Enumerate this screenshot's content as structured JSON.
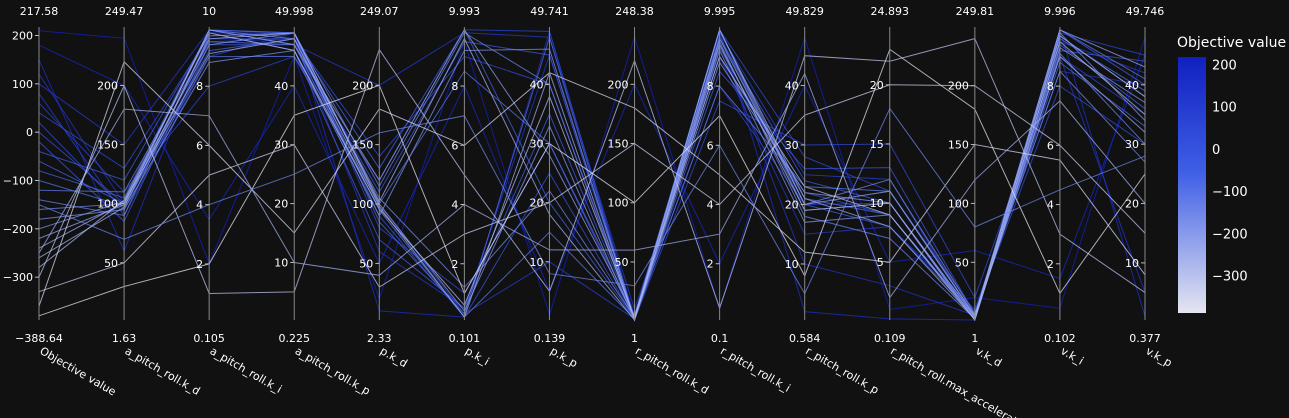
{
  "chart_data": {
    "type": "parallel_coordinates",
    "title": "",
    "colorbar": {
      "title": "Objective value",
      "range": [
        -388.64,
        217.58
      ],
      "ticks": [
        200,
        100,
        0,
        -100,
        -200,
        -300
      ],
      "colorscale": [
        "#e5e5f0",
        "#3f5fe6",
        "#1020c0"
      ]
    },
    "dimensions": [
      {
        "label": "Objective value",
        "min": -388.64,
        "max": 217.58,
        "min_label": "−388.64",
        "max_label": "217.58",
        "ticks": [
          200,
          100,
          0,
          -100,
          -200,
          -300
        ],
        "tick_labels": [
          "200",
          "100",
          "0",
          "−100",
          "−200",
          "−300"
        ]
      },
      {
        "label": "a_pitch_roll.k_d",
        "min": 1.63,
        "max": 249.47,
        "min_label": "1.63",
        "max_label": "249.47",
        "ticks": [
          200,
          150,
          100,
          50
        ],
        "tick_labels": [
          "200",
          "150",
          "100",
          "50"
        ]
      },
      {
        "label": "a_pitch_roll.k_i",
        "min": 0.105,
        "max": 10,
        "min_label": "0.105",
        "max_label": "10",
        "ticks": [
          8,
          6,
          4,
          2
        ],
        "tick_labels": [
          "8",
          "6",
          "4",
          "2"
        ]
      },
      {
        "label": "a_pitch_roll.k_p",
        "min": 0.225,
        "max": 49.998,
        "min_label": "0.225",
        "max_label": "49.998",
        "ticks": [
          40,
          30,
          20,
          10
        ],
        "tick_labels": [
          "40",
          "30",
          "20",
          "10"
        ]
      },
      {
        "label": "p.k_d",
        "min": 2.33,
        "max": 249.07,
        "min_label": "2.33",
        "max_label": "249.07",
        "ticks": [
          200,
          150,
          100,
          50
        ],
        "tick_labels": [
          "200",
          "150",
          "100",
          "50"
        ]
      },
      {
        "label": "p.k_i",
        "min": 0.101,
        "max": 9.993,
        "min_label": "0.101",
        "max_label": "9.993",
        "ticks": [
          8,
          6,
          4,
          2
        ],
        "tick_labels": [
          "8",
          "6",
          "4",
          "2"
        ]
      },
      {
        "label": "p.k_p",
        "min": 0.139,
        "max": 49.741,
        "min_label": "0.139",
        "max_label": "49.741",
        "ticks": [
          40,
          30,
          20,
          10
        ],
        "tick_labels": [
          "40",
          "30",
          "20",
          "10"
        ]
      },
      {
        "label": "r_pitch_roll.k_d",
        "min": 1,
        "max": 248.38,
        "min_label": "1",
        "max_label": "248.38",
        "ticks": [
          200,
          150,
          100,
          50
        ],
        "tick_labels": [
          "200",
          "150",
          "100",
          "50"
        ]
      },
      {
        "label": "r_pitch_roll.k_i",
        "min": 0.1,
        "max": 9.995,
        "min_label": "0.1",
        "max_label": "9.995",
        "ticks": [
          8,
          6,
          4,
          2
        ],
        "tick_labels": [
          "8",
          "6",
          "4",
          "2"
        ]
      },
      {
        "label": "r_pitch_roll.k_p",
        "min": 0.584,
        "max": 49.829,
        "min_label": "0.584",
        "max_label": "49.829",
        "ticks": [
          40,
          30,
          20,
          10
        ],
        "tick_labels": [
          "40",
          "30",
          "20",
          "10"
        ]
      },
      {
        "label": "r_pitch_roll.max_acceleration",
        "min": 0.109,
        "max": 24.893,
        "min_label": "0.109",
        "max_label": "24.893",
        "ticks": [
          20,
          15,
          10,
          5
        ],
        "tick_labels": [
          "20",
          "15",
          "10",
          "5"
        ]
      },
      {
        "label": "v.k_d",
        "min": 1,
        "max": 249.81,
        "min_label": "1",
        "max_label": "249.81",
        "ticks": [
          200,
          150,
          100,
          50
        ],
        "tick_labels": [
          "200",
          "150",
          "100",
          "50"
        ]
      },
      {
        "label": "v.k_i",
        "min": 0.102,
        "max": 9.996,
        "min_label": "0.102",
        "max_label": "9.996",
        "ticks": [
          8,
          6,
          4,
          2
        ],
        "tick_labels": [
          "8",
          "6",
          "4",
          "2"
        ]
      },
      {
        "label": "v.k_p",
        "min": 0.377,
        "max": 49.746,
        "min_label": "0.377",
        "max_label": "49.746",
        "ticks": [
          40,
          30,
          20,
          10
        ],
        "tick_labels": [
          "40",
          "30",
          "20",
          "10"
        ]
      }
    ],
    "lines": [
      [
        210,
        240,
        2.0,
        45,
        20,
        9.5,
        1,
        240,
        0.5,
        48,
        1,
        20,
        0.5,
        48
      ],
      [
        180,
        200,
        3.5,
        40,
        50,
        8.0,
        5,
        200,
        2.0,
        40,
        5,
        60,
        1.5,
        45
      ],
      [
        150,
        60,
        9.8,
        49,
        10,
        0.2,
        49,
        1,
        9.9,
        2,
        0.2,
        1,
        9.9,
        1
      ],
      [
        120,
        100,
        9.5,
        48,
        60,
        0.5,
        45,
        5,
        9.5,
        10,
        3,
        5,
        9.0,
        5
      ],
      [
        100,
        150,
        9.9,
        47,
        200,
        9.8,
        48,
        10,
        9.0,
        15,
        8,
        10,
        8.5,
        40
      ],
      [
        80,
        90,
        9.0,
        49,
        100,
        0.3,
        10,
        2,
        8.0,
        20,
        10,
        3,
        9.5,
        42
      ],
      [
        60,
        110,
        8.0,
        45,
        120,
        9.9,
        49,
        3,
        9.8,
        25,
        12,
        2,
        9.8,
        45
      ],
      [
        40,
        130,
        9.7,
        49,
        80,
        1.0,
        30,
        1,
        7.5,
        30,
        15,
        20,
        9.0,
        35
      ],
      [
        20,
        95,
        9.6,
        48,
        140,
        9.0,
        40,
        4,
        9.9,
        28,
        11,
        8,
        8.0,
        30
      ],
      [
        0,
        100,
        9.9,
        49,
        90,
        0.2,
        25,
        2,
        9.0,
        22,
        9,
        4,
        9.7,
        38
      ],
      [
        -20,
        85,
        9.4,
        47,
        110,
        9.5,
        45,
        1,
        8.5,
        26,
        13,
        6,
        9.2,
        44
      ],
      [
        -40,
        120,
        9.8,
        46,
        70,
        0.5,
        35,
        3,
        9.6,
        24,
        10,
        2,
        9.9,
        40
      ],
      [
        -60,
        100,
        9.2,
        48,
        130,
        9.9,
        20,
        2,
        9.7,
        20,
        8,
        5,
        9.4,
        36
      ],
      [
        -80,
        105,
        9.9,
        49,
        85,
        0.3,
        48,
        1,
        9.3,
        21,
        9,
        3,
        8.8,
        33
      ],
      [
        -100,
        98,
        9.0,
        45,
        100,
        8.5,
        30,
        5,
        9.9,
        19,
        10,
        1,
        9.6,
        39
      ],
      [
        -120,
        110,
        9.5,
        47,
        95,
        0.2,
        15,
        2,
        8.0,
        23,
        11,
        4,
        9.9,
        41
      ],
      [
        -140,
        90,
        9.7,
        49,
        115,
        9.8,
        40,
        1,
        9.5,
        18,
        7,
        2,
        9.1,
        30
      ],
      [
        -160,
        100,
        9.9,
        48,
        105,
        1.2,
        22,
        3,
        9.9,
        20,
        12,
        6,
        8.5,
        27
      ],
      [
        -180,
        95,
        8.8,
        46,
        90,
        9.2,
        46,
        2,
        9.2,
        17,
        9,
        3,
        9.8,
        34
      ],
      [
        -200,
        102,
        9.4,
        49,
        100,
        0.4,
        33,
        1,
        8.8,
        22,
        10,
        1,
        9.3,
        37
      ],
      [
        -220,
        99,
        9.9,
        47,
        120,
        9.9,
        28,
        4,
        9.6,
        20,
        11,
        5,
        9.9,
        43
      ],
      [
        -240,
        101,
        9.1,
        48,
        98,
        0.2,
        42,
        2,
        9.9,
        21,
        8,
        2,
        9.0,
        32
      ],
      [
        -260,
        97,
        9.6,
        49,
        102,
        9.6,
        18,
        1,
        9.4,
        19,
        10,
        4,
        9.7,
        38
      ],
      [
        -280,
        103,
        9.8,
        46,
        96,
        0.6,
        38,
        3,
        9.0,
        23,
        9,
        1,
        9.5,
        35
      ],
      [
        -300,
        200,
        1.0,
        5,
        230,
        5.0,
        5,
        220,
        0.5,
        45,
        22,
        240,
        3.0,
        5
      ],
      [
        -330,
        50,
        5.0,
        30,
        30,
        3.0,
        20,
        150,
        4.0,
        35,
        20,
        200,
        6.0,
        15
      ],
      [
        -360,
        220,
        6.0,
        15,
        180,
        6.0,
        42,
        180,
        5.0,
        12,
        5,
        150,
        5.5,
        8
      ],
      [
        -380,
        30,
        2.0,
        35,
        200,
        1.0,
        30,
        100,
        7.0,
        8,
        23,
        180,
        1.0,
        25
      ],
      [
        -250,
        180,
        7.0,
        10,
        40,
        4.0,
        12,
        60,
        3.0,
        42,
        2,
        120,
        7.5,
        20
      ],
      [
        -150,
        70,
        4.0,
        25,
        160,
        7.0,
        8,
        30,
        6.0,
        5,
        18,
        80,
        4.5,
        28
      ]
    ]
  }
}
